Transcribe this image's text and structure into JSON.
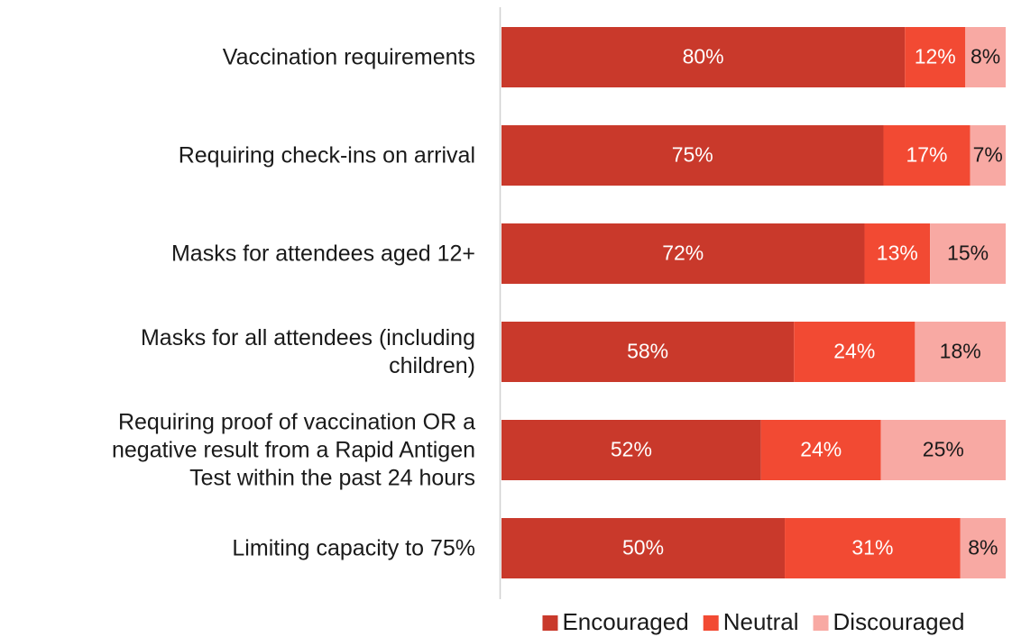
{
  "chart_data": {
    "type": "stacked-bar",
    "orientation": "horizontal",
    "stack": "percent",
    "categories": [
      "Vaccination requirements",
      "Requiring check-ins on arrival",
      "Masks for attendees aged 12+",
      "Masks for all attendees (including\nchildren)",
      "Requiring proof of vaccination OR a\nnegative result from a Rapid Antigen\nTest within the past 24 hours",
      "Limiting capacity to 75%"
    ],
    "series": [
      {
        "name": "Encouraged",
        "color": "#c9392b",
        "label_color": "#ffffff",
        "values": [
          80,
          75,
          72,
          58,
          52,
          50
        ],
        "value_labels": [
          "80%",
          "75%",
          "72%",
          "58%",
          "52%",
          "50%"
        ]
      },
      {
        "name": "Neutral",
        "color": "#f24a33",
        "label_color": "#ffffff",
        "values": [
          12,
          17,
          13,
          24,
          24,
          31
        ],
        "value_labels": [
          "12%",
          "17%",
          "13%",
          "24%",
          "24%",
          "31%"
        ]
      },
      {
        "name": "Discouraged",
        "color": "#f8a9a3",
        "label_color": "#1a1a1a",
        "values": [
          8,
          7,
          15,
          18,
          25,
          8
        ],
        "value_labels": [
          "8%",
          "7%",
          "15%",
          "18%",
          "25%",
          "8%"
        ]
      }
    ],
    "legend": "bottom"
  }
}
